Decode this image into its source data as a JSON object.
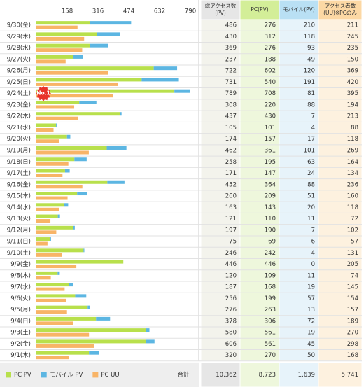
{
  "chart_data": {
    "type": "stacked-horizontal-bar",
    "xlim": [
      0,
      790
    ],
    "xticks": [
      158,
      316,
      474,
      632,
      790
    ],
    "badge": "No.1",
    "categories": [
      "9/30(金)",
      "9/29(木)",
      "9/28(水)",
      "9/27(火)",
      "9/26(月)",
      "9/25(日)",
      "9/24(土)",
      "9/23(金)",
      "9/22(木)",
      "9/21(水)",
      "9/20(火)",
      "9/19(月)",
      "9/18(日)",
      "9/17(土)",
      "9/16(金)",
      "9/15(木)",
      "9/14(水)",
      "9/13(火)",
      "9/12(月)",
      "9/11(日)",
      "9/10(土)",
      "9/9(金)",
      "9/8(木)",
      "9/7(水)",
      "9/6(火)",
      "9/5(月)",
      "9/4(日)",
      "9/3(土)",
      "9/2(金)",
      "9/1(木)"
    ],
    "series": [
      {
        "name": "PC PV",
        "color": "#b8e04c",
        "stack": "pv",
        "values": [
          276,
          312,
          276,
          188,
          602,
          540,
          708,
          220,
          430,
          101,
          157,
          361,
          195,
          147,
          364,
          209,
          143,
          110,
          190,
          69,
          242,
          446,
          109,
          168,
          199,
          263,
          306,
          561,
          561,
          270
        ]
      },
      {
        "name": "モバイル PV",
        "color": "#5cb6e2",
        "stack": "pv",
        "values": [
          210,
          118,
          93,
          49,
          120,
          191,
          81,
          88,
          7,
          4,
          17,
          101,
          63,
          24,
          88,
          51,
          20,
          11,
          7,
          6,
          4,
          0,
          11,
          19,
          57,
          13,
          72,
          19,
          45,
          50
        ]
      },
      {
        "name": "PC UU",
        "color": "#f8b467",
        "stack": "uu",
        "values": [
          211,
          245,
          235,
          150,
          369,
          420,
          395,
          194,
          213,
          88,
          118,
          269,
          164,
          134,
          236,
          160,
          118,
          72,
          102,
          57,
          131,
          205,
          74,
          145,
          154,
          157,
          189,
          270,
          298,
          168
        ]
      }
    ]
  },
  "table": {
    "headers": [
      [
        "総アクセス数",
        "(PV)"
      ],
      [
        "PC(PV)"
      ],
      [
        "モバイル(PV)"
      ],
      [
        "アクセス者数",
        "(UU)※PCのみ"
      ]
    ],
    "total_pv": [
      486,
      430,
      369,
      237,
      722,
      731,
      789,
      308,
      437,
      105,
      174,
      462,
      258,
      171,
      452,
      260,
      163,
      121,
      197,
      75,
      246,
      446,
      120,
      187,
      256,
      276,
      378,
      580,
      606,
      320
    ],
    "total_label": "合計",
    "totals": [
      "10,362",
      "8,723",
      "1,639",
      "5,741"
    ]
  }
}
